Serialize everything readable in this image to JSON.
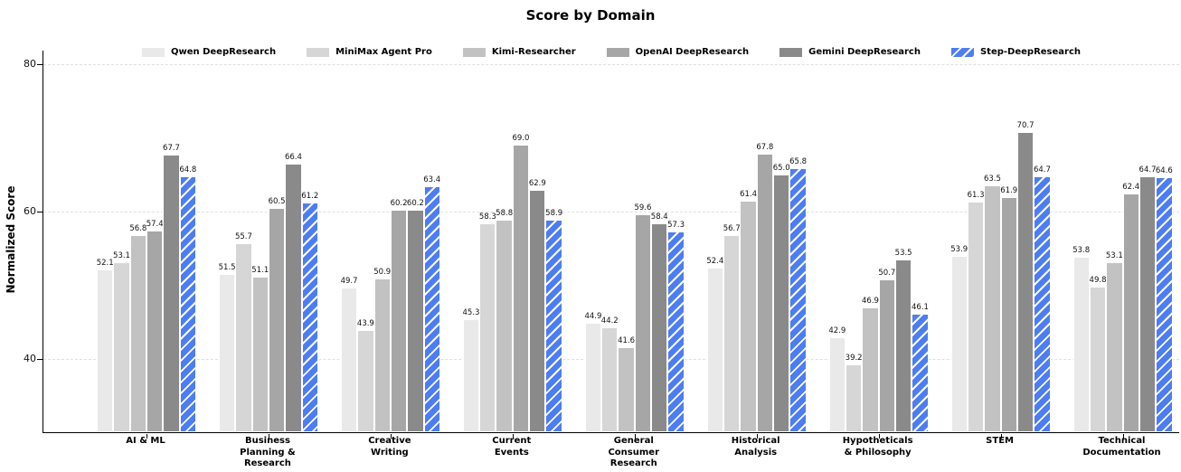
{
  "title": "Score by Domain",
  "chart_data": {
    "type": "bar",
    "title": "Score by Domain",
    "xlabel": "",
    "ylabel": "Normalized Score",
    "ylim": [
      30,
      81.8
    ],
    "yticks": [
      40,
      60,
      80
    ],
    "grid": "horizontal-dashed",
    "legend_position": "top-center-inside",
    "background_color": "#ffffff",
    "categories": [
      "AI & ML",
      "Business\nPlanning &\nResearch",
      "Creative\nWriting",
      "Current\nEvents",
      "General\nConsumer\nResearch",
      "Historical\nAnalysis",
      "Hypotheticals\n& Philosophy",
      "STEM",
      "Technical\nDocumentation"
    ],
    "series": [
      {
        "name": "Qwen DeepResearch",
        "color": "#e9e9e9",
        "hatch": null,
        "values": [
          52.1,
          51.5,
          49.7,
          45.3,
          44.9,
          52.4,
          42.9,
          53.9,
          53.8
        ]
      },
      {
        "name": "MiniMax Agent Pro",
        "color": "#d6d6d6",
        "hatch": null,
        "values": [
          53.1,
          55.7,
          43.9,
          58.3,
          44.2,
          56.7,
          39.2,
          61.3,
          49.8
        ]
      },
      {
        "name": "Kimi-Researcher",
        "color": "#c2c2c2",
        "hatch": null,
        "values": [
          56.8,
          51.1,
          50.9,
          58.8,
          41.6,
          61.4,
          46.9,
          63.5,
          53.1
        ]
      },
      {
        "name": "OpenAI DeepResearch",
        "color": "#a6a6a6",
        "hatch": null,
        "values": [
          57.4,
          60.5,
          60.2,
          69.0,
          59.6,
          67.8,
          50.7,
          61.9,
          62.4
        ]
      },
      {
        "name": "Gemini DeepResearch",
        "color": "#8a8a8a",
        "hatch": null,
        "values": [
          67.7,
          66.4,
          60.2,
          62.9,
          58.4,
          65.0,
          53.5,
          70.7,
          64.7
        ]
      },
      {
        "name": "Step-DeepResearch",
        "color": "#4d7df2",
        "hatch": "/",
        "values": [
          64.8,
          61.2,
          63.4,
          58.9,
          57.3,
          65.8,
          46.1,
          64.7,
          64.6
        ]
      }
    ]
  }
}
